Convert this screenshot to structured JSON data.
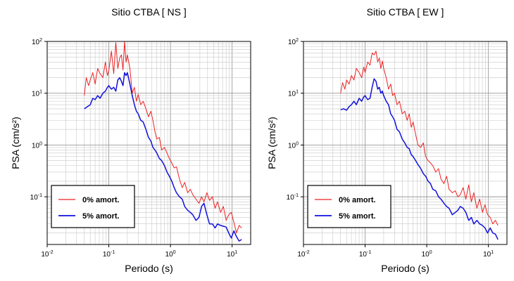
{
  "chart_data": [
    {
      "type": "line",
      "title": "Sitio CTBA [ NS ]",
      "xlabel": "Periodo (s)",
      "ylabel": "PSA (cm/s²)",
      "xscale": "log",
      "yscale": "log",
      "xlim": [
        0.01,
        20
      ],
      "ylim": [
        0.012,
        100
      ],
      "xticks": [
        "10-2",
        "10-1",
        "100",
        "101"
      ],
      "yticks": [
        "10-1",
        "100",
        "101",
        "102"
      ],
      "grid": true,
      "legend": "bottom-left",
      "series": [
        {
          "name": "0% amort.",
          "color": "#ee2222",
          "x": [
            0.04,
            0.043,
            0.047,
            0.05,
            0.055,
            0.06,
            0.066,
            0.072,
            0.08,
            0.088,
            0.095,
            0.1,
            0.11,
            0.12,
            0.13,
            0.14,
            0.15,
            0.16,
            0.17,
            0.18,
            0.19,
            0.2,
            0.22,
            0.24,
            0.26,
            0.28,
            0.3,
            0.33,
            0.36,
            0.4,
            0.44,
            0.48,
            0.52,
            0.56,
            0.6,
            0.66,
            0.72,
            0.8,
            0.88,
            0.96,
            1.05,
            1.15,
            1.25,
            1.4,
            1.55,
            1.7,
            1.9,
            2.1,
            2.3,
            2.6,
            2.9,
            3.2,
            3.5,
            3.9,
            4.3,
            4.8,
            5.3,
            5.8,
            6.5,
            7.2,
            8.0,
            8.8,
            9.7,
            10.7,
            11.8,
            13.0,
            14.3
          ],
          "y": [
            9.0,
            20.0,
            14.0,
            18.0,
            25.0,
            15.0,
            30.0,
            24.0,
            20.0,
            40.0,
            22.0,
            27.0,
            65.0,
            24.0,
            95.0,
            30.0,
            48.0,
            55.0,
            28.0,
            100.0,
            40.0,
            55.0,
            30.0,
            10.0,
            13.0,
            7.0,
            9.5,
            6.0,
            7.0,
            5.0,
            3.5,
            4.5,
            3.0,
            1.8,
            1.3,
            1.4,
            0.8,
            0.9,
            0.7,
            0.55,
            0.45,
            0.36,
            0.38,
            0.22,
            0.15,
            0.19,
            0.12,
            0.14,
            0.11,
            0.09,
            0.075,
            0.1,
            0.08,
            0.12,
            0.085,
            0.1,
            0.06,
            0.08,
            0.05,
            0.065,
            0.035,
            0.045,
            0.05,
            0.032,
            0.02,
            0.028,
            0.025
          ]
        },
        {
          "name": "5% amort.",
          "color": "#1111dd",
          "x": [
            0.04,
            0.045,
            0.05,
            0.055,
            0.06,
            0.066,
            0.072,
            0.08,
            0.088,
            0.095,
            0.1,
            0.11,
            0.12,
            0.13,
            0.14,
            0.15,
            0.16,
            0.17,
            0.18,
            0.19,
            0.2,
            0.22,
            0.24,
            0.26,
            0.28,
            0.3,
            0.33,
            0.36,
            0.4,
            0.44,
            0.48,
            0.52,
            0.56,
            0.6,
            0.66,
            0.72,
            0.8,
            0.88,
            0.96,
            1.05,
            1.15,
            1.25,
            1.4,
            1.55,
            1.7,
            1.9,
            2.1,
            2.3,
            2.6,
            2.9,
            3.2,
            3.5,
            3.9,
            4.3,
            4.8,
            5.3,
            5.8,
            6.5,
            7.2,
            8.0,
            8.8,
            9.7,
            10.7,
            11.8,
            13.0,
            14.3
          ],
          "y": [
            5.0,
            5.5,
            6.0,
            8.0,
            7.5,
            9.0,
            8.0,
            10.0,
            11.0,
            13.0,
            14.0,
            12.0,
            13.0,
            11.0,
            18.0,
            20.0,
            17.0,
            14.0,
            25.0,
            22.0,
            25.0,
            15.0,
            9.0,
            6.0,
            4.5,
            4.0,
            3.0,
            2.8,
            2.0,
            1.4,
            1.2,
            0.9,
            0.8,
            0.7,
            0.55,
            0.5,
            0.4,
            0.3,
            0.25,
            0.2,
            0.15,
            0.12,
            0.1,
            0.09,
            0.065,
            0.055,
            0.05,
            0.045,
            0.035,
            0.04,
            0.065,
            0.075,
            0.045,
            0.03,
            0.03,
            0.025,
            0.03,
            0.028,
            0.027,
            0.026,
            0.02,
            0.016,
            0.022,
            0.017,
            0.014,
            0.015
          ]
        }
      ]
    },
    {
      "type": "line",
      "title": "Sitio CTBA [ EW ]",
      "xlabel": "Periodo (s)",
      "ylabel": "PSA (cm/s²)",
      "xscale": "log",
      "yscale": "log",
      "xlim": [
        0.01,
        20
      ],
      "ylim": [
        0.012,
        100
      ],
      "xticks": [
        "10-2",
        "10-1",
        "100",
        "101"
      ],
      "yticks": [
        "10-1",
        "100",
        "101",
        "102"
      ],
      "grid": true,
      "legend": "bottom-left",
      "series": [
        {
          "name": "0% amort.",
          "color": "#ee2222",
          "x": [
            0.04,
            0.043,
            0.047,
            0.05,
            0.055,
            0.06,
            0.066,
            0.072,
            0.08,
            0.088,
            0.095,
            0.1,
            0.11,
            0.12,
            0.13,
            0.14,
            0.15,
            0.16,
            0.17,
            0.18,
            0.19,
            0.2,
            0.22,
            0.24,
            0.26,
            0.28,
            0.3,
            0.33,
            0.36,
            0.4,
            0.44,
            0.48,
            0.52,
            0.56,
            0.6,
            0.66,
            0.72,
            0.8,
            0.88,
            0.96,
            1.05,
            1.15,
            1.25,
            1.4,
            1.55,
            1.7,
            1.9,
            2.1,
            2.3,
            2.6,
            2.9,
            3.2,
            3.5,
            3.9,
            4.3,
            4.8,
            5.3,
            5.8,
            6.5,
            7.2,
            8.0,
            8.8,
            9.7,
            10.7,
            11.8,
            13.0,
            14.3
          ],
          "y": [
            10.0,
            16.0,
            12.0,
            18.0,
            15.0,
            22.0,
            18.0,
            30.0,
            25.0,
            20.0,
            32.0,
            25.0,
            40.0,
            35.0,
            60.0,
            55.0,
            65.0,
            40.0,
            48.0,
            30.0,
            42.0,
            30.0,
            20.0,
            12.0,
            15.0,
            9.0,
            10.0,
            6.0,
            7.0,
            4.0,
            4.5,
            3.0,
            4.0,
            2.2,
            2.8,
            1.6,
            1.0,
            0.9,
            1.1,
            0.6,
            0.5,
            0.45,
            0.4,
            0.3,
            0.35,
            0.22,
            0.18,
            0.25,
            0.14,
            0.12,
            0.13,
            0.1,
            0.11,
            0.15,
            0.09,
            0.17,
            0.08,
            0.12,
            0.06,
            0.09,
            0.05,
            0.07,
            0.045,
            0.04,
            0.03,
            0.035,
            0.028
          ]
        },
        {
          "name": "5% amort.",
          "color": "#1111dd",
          "x": [
            0.04,
            0.045,
            0.05,
            0.055,
            0.06,
            0.066,
            0.072,
            0.08,
            0.088,
            0.095,
            0.1,
            0.11,
            0.12,
            0.13,
            0.14,
            0.15,
            0.16,
            0.17,
            0.18,
            0.19,
            0.2,
            0.22,
            0.24,
            0.26,
            0.28,
            0.3,
            0.33,
            0.36,
            0.4,
            0.44,
            0.48,
            0.52,
            0.56,
            0.6,
            0.66,
            0.72,
            0.8,
            0.88,
            0.96,
            1.05,
            1.15,
            1.25,
            1.4,
            1.55,
            1.7,
            1.9,
            2.1,
            2.3,
            2.6,
            2.9,
            3.2,
            3.5,
            3.9,
            4.3,
            4.8,
            5.3,
            5.8,
            6.5,
            7.2,
            8.0,
            8.8,
            9.7,
            10.7,
            11.8,
            13.0,
            14.3
          ],
          "y": [
            4.8,
            5.0,
            4.7,
            5.5,
            6.0,
            7.0,
            6.0,
            8.0,
            7.0,
            8.5,
            9.0,
            7.5,
            8.0,
            13.0,
            19.0,
            17.0,
            12.0,
            13.0,
            10.0,
            11.0,
            9.0,
            7.0,
            6.0,
            4.0,
            3.5,
            3.0,
            2.0,
            1.8,
            1.3,
            1.1,
            0.9,
            0.85,
            0.65,
            0.6,
            0.5,
            0.42,
            0.35,
            0.28,
            0.25,
            0.2,
            0.18,
            0.14,
            0.13,
            0.1,
            0.09,
            0.075,
            0.065,
            0.06,
            0.045,
            0.05,
            0.055,
            0.065,
            0.06,
            0.05,
            0.035,
            0.04,
            0.03,
            0.035,
            0.03,
            0.028,
            0.025,
            0.02,
            0.025,
            0.02,
            0.019,
            0.015
          ]
        }
      ]
    }
  ]
}
